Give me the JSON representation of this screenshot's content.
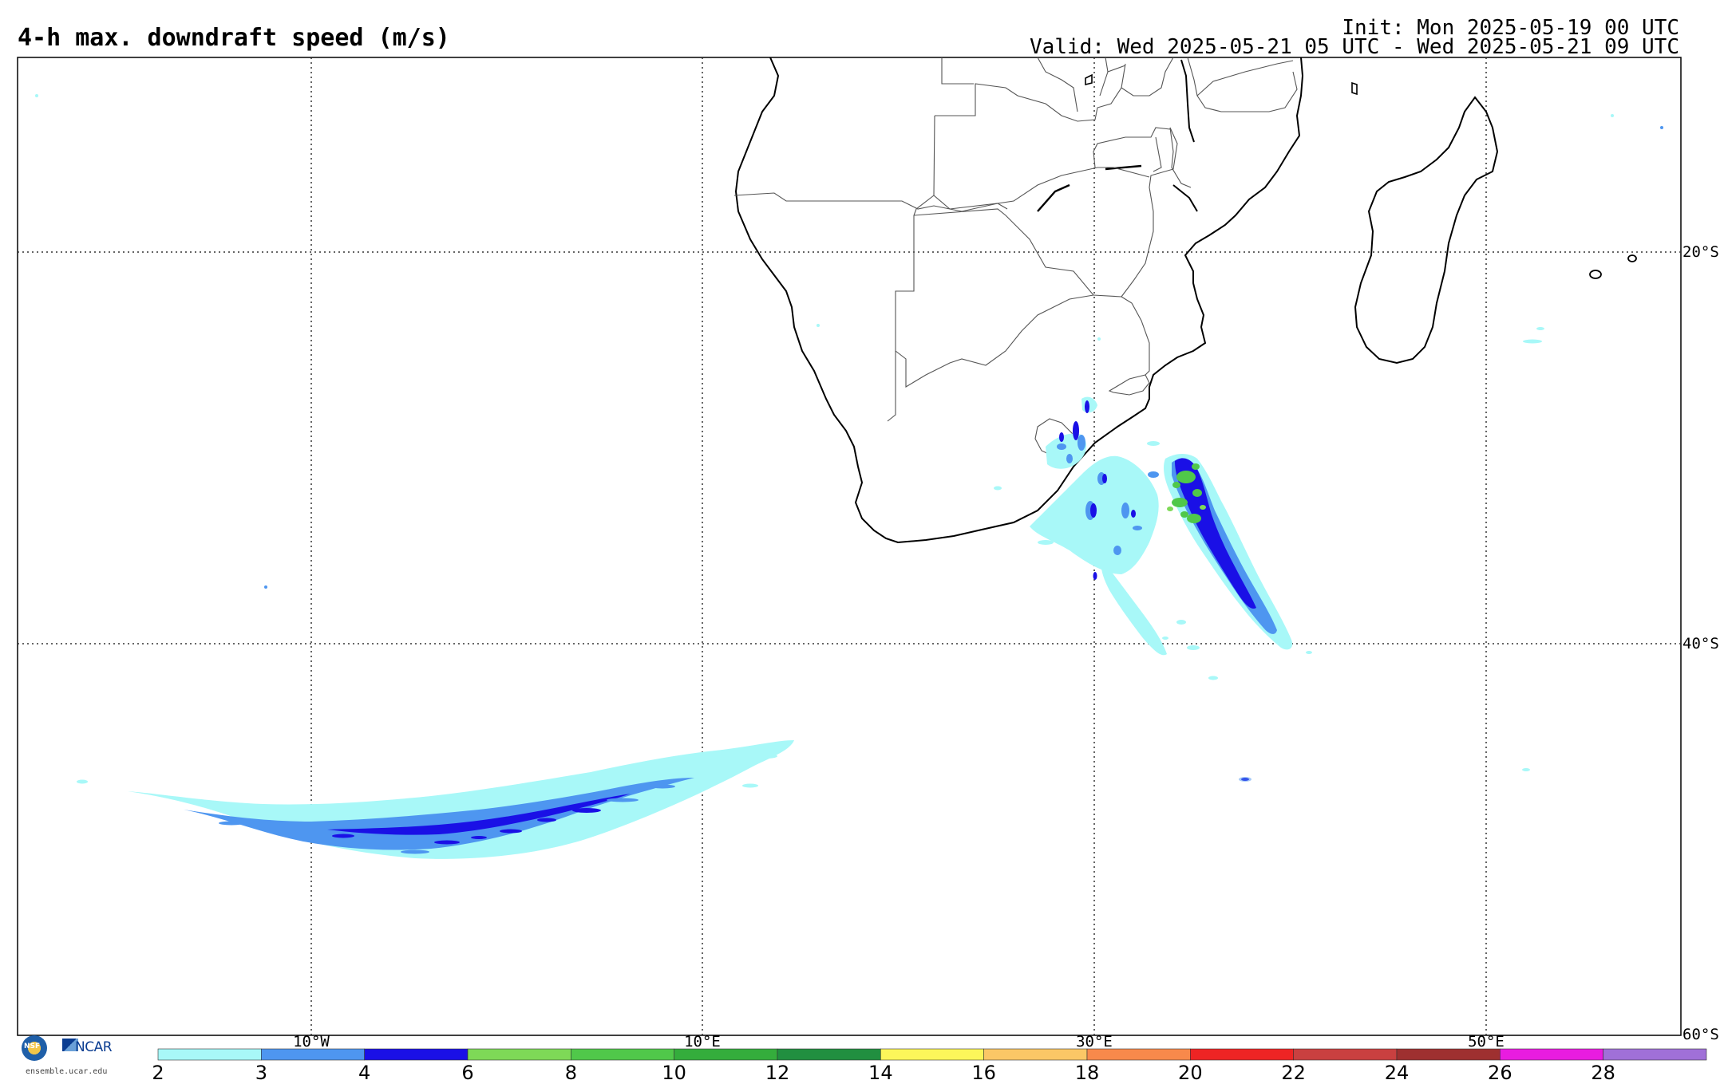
{
  "header": {
    "title": "4-h max. downdraft speed (m/s)",
    "init": "Init: Mon 2025-05-19 00 UTC",
    "valid": "Valid: Wed 2025-05-21 05 UTC - Wed 2025-05-21 09 UTC"
  },
  "map": {
    "longitude_labels": [
      "10°W",
      "10°E",
      "30°E",
      "50°E"
    ],
    "latitude_labels": [
      "20°S",
      "40°S",
      "60°S"
    ]
  },
  "colorbar": {
    "units": "m/s",
    "ticks": [
      "2",
      "3",
      "4",
      "6",
      "8",
      "10",
      "12",
      "14",
      "16",
      "18",
      "20",
      "22",
      "24",
      "26",
      "28"
    ],
    "colors": [
      "#a8f8f8",
      "#4e96f0",
      "#1a10e6",
      "#7ed957",
      "#50c84a",
      "#34ad3c",
      "#218f40",
      "#fcf65a",
      "#fbc766",
      "#f8894b",
      "#ee2424",
      "#c94040",
      "#9e3030",
      "#e81ce0",
      "#a070d8"
    ]
  },
  "credits": {
    "nsf": "NSF",
    "ncar": "NCAR",
    "site": "ensemble.ucar.edu"
  }
}
